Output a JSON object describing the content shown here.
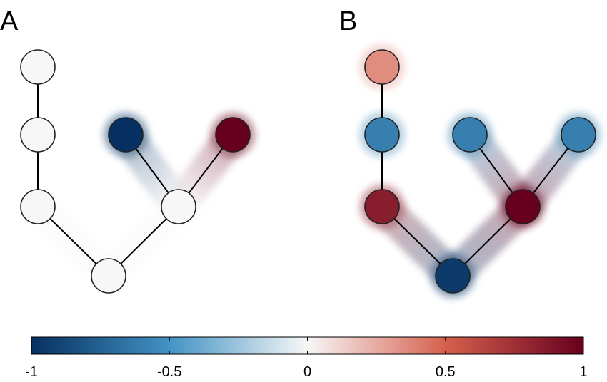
{
  "panels": [
    {
      "label": "A",
      "nodes": [
        {
          "id": "a1",
          "value": 0.0
        },
        {
          "id": "a2",
          "value": 0.0
        },
        {
          "id": "a3",
          "value": 0.0
        },
        {
          "id": "a4",
          "value": 0.0
        },
        {
          "id": "a5",
          "value": 0.0
        },
        {
          "id": "a6",
          "value": -1.0
        },
        {
          "id": "a7",
          "value": 1.0
        }
      ],
      "edges": [
        [
          "a1",
          "a2"
        ],
        [
          "a2",
          "a3"
        ],
        [
          "a3",
          "a4"
        ],
        [
          "a4",
          "a5"
        ],
        [
          "a5",
          "a6"
        ],
        [
          "a5",
          "a7"
        ]
      ]
    },
    {
      "label": "B",
      "nodes": [
        {
          "id": "b1",
          "value": 0.35
        },
        {
          "id": "b2",
          "value": -0.6
        },
        {
          "id": "b3",
          "value": 0.85
        },
        {
          "id": "b4",
          "value": -0.95
        },
        {
          "id": "b5",
          "value": 1.0
        },
        {
          "id": "b6",
          "value": -0.6
        },
        {
          "id": "b7",
          "value": -0.6
        }
      ],
      "edges": [
        [
          "b1",
          "b2"
        ],
        [
          "b2",
          "b3"
        ],
        [
          "b3",
          "b4"
        ],
        [
          "b4",
          "b5"
        ],
        [
          "b5",
          "b6"
        ],
        [
          "b5",
          "b7"
        ]
      ]
    }
  ],
  "colorbar": {
    "min": -1,
    "max": 1,
    "ticks": [
      {
        "value": -1,
        "label": "-1"
      },
      {
        "value": -0.5,
        "label": "-0.5"
      },
      {
        "value": 0,
        "label": "0"
      },
      {
        "value": 0.5,
        "label": "0.5"
      },
      {
        "value": 1,
        "label": "1"
      }
    ],
    "stops": [
      {
        "value": -1,
        "color": "#053061"
      },
      {
        "value": -0.5,
        "color": "#4393c3"
      },
      {
        "value": 0,
        "color": "#f7f7f7"
      },
      {
        "value": 0.5,
        "color": "#d6604d"
      },
      {
        "value": 1,
        "color": "#67001f"
      }
    ]
  },
  "colors": {
    "node_stroke": "#222222",
    "edge": "#000000"
  }
}
